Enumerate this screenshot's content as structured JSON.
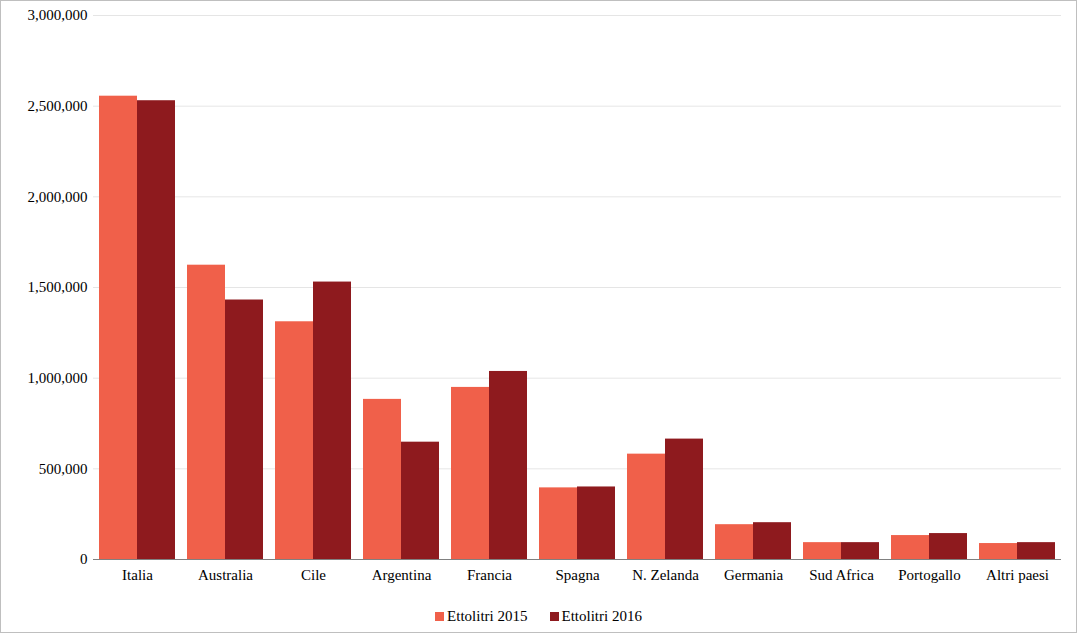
{
  "chart_data": {
    "type": "bar",
    "categories": [
      "Italia",
      "Australia",
      "Cile",
      "Argentina",
      "Francia",
      "Spagna",
      "N. Zelanda",
      "Germania",
      "Sud Africa",
      "Portogallo",
      "Altri paesi"
    ],
    "series": [
      {
        "name": "Ettolitri 2015",
        "color": "#f0604a",
        "values": [
          2555000,
          1623000,
          1311000,
          883000,
          949000,
          395000,
          581000,
          192000,
          93000,
          132000,
          88000
        ]
      },
      {
        "name": "Ettolitri 2016",
        "color": "#8e1a1e",
        "values": [
          2530000,
          1431000,
          1530000,
          647000,
          1037000,
          400000,
          664000,
          203000,
          93000,
          143000,
          93000
        ]
      }
    ],
    "ylim": [
      0,
      3000000
    ],
    "yticks": [
      0,
      {
        "value": 500000,
        "label": "500,000"
      },
      {
        "value": 1000000,
        "label": "1,000,000"
      },
      {
        "value": 1500000,
        "label": "1,500,000"
      },
      {
        "value": 2000000,
        "label": "2,000,000"
      },
      {
        "value": 2500000,
        "label": "2,500,000"
      },
      {
        "value": 3000000,
        "label": "3,000,000"
      }
    ],
    "grid": true,
    "legend": "bottom"
  }
}
